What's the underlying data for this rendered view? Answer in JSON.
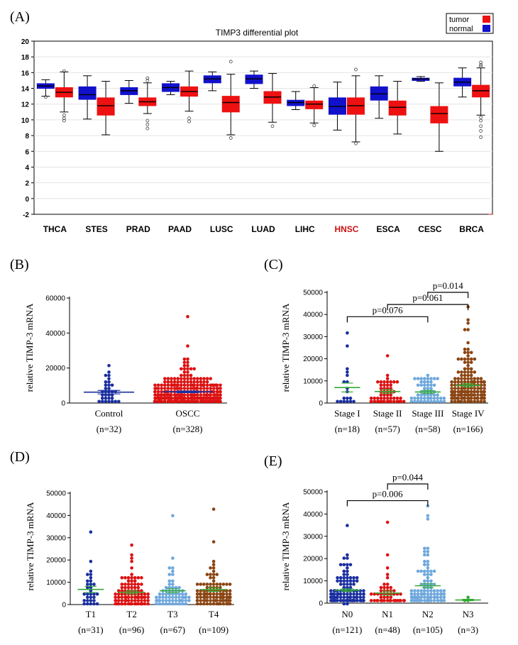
{
  "figure_panels": {
    "A": "(A)",
    "B": "(B)",
    "C": "(C)",
    "D": "(D)",
    "E": "(E)"
  },
  "colors": {
    "tumor": "#ee1111",
    "normal": "#1111cc",
    "hnsc_label": "#cc1111",
    "dot_blue": "#1a2ea0",
    "dot_red": "#dd1111",
    "dot_lightblue": "#6fa8dc",
    "dot_brown": "#8b4513",
    "mean_green": "#33aa33"
  },
  "chart_data": [
    {
      "id": "A",
      "type": "box",
      "title": "TIMP3 differential plot",
      "legend": [
        "tumor",
        "normal"
      ],
      "ylim": [
        -2,
        20
      ],
      "yticks": [
        -2,
        0,
        2,
        4,
        6,
        8,
        10,
        12,
        14,
        16,
        18,
        20
      ],
      "yticklabels": [
        "-2",
        "0",
        "2",
        "4",
        "6",
        "8",
        "10",
        "12",
        "14",
        "16",
        "18",
        "20"
      ],
      "categories": [
        "THCA",
        "STES",
        "PRAD",
        "PAAD",
        "LUSC",
        "LUAD",
        "LIHC",
        "HNSC",
        "ESCA",
        "CESC",
        "BRCA"
      ],
      "highlight": "HNSC",
      "series": [
        {
          "name": "normal",
          "boxes": [
            {
              "min": 13.0,
              "q1": 14.0,
              "median": 14.3,
              "q3": 14.6,
              "max": 15.1,
              "out": [
                12.9
              ]
            },
            {
              "min": 10.1,
              "q1": 12.6,
              "median": 13.2,
              "q3": 14.2,
              "max": 15.6,
              "out": []
            },
            {
              "min": 12.1,
              "q1": 13.2,
              "median": 13.7,
              "q3": 14.1,
              "max": 15.0,
              "out": []
            },
            {
              "min": 13.2,
              "q1": 13.6,
              "median": 14.1,
              "q3": 14.6,
              "max": 14.9,
              "out": []
            },
            {
              "min": 13.7,
              "q1": 14.7,
              "median": 15.2,
              "q3": 15.6,
              "max": 16.1,
              "out": []
            },
            {
              "min": 14.0,
              "q1": 14.6,
              "median": 15.2,
              "q3": 15.7,
              "max": 16.2,
              "out": []
            },
            {
              "min": 11.3,
              "q1": 11.8,
              "median": 12.2,
              "q3": 12.5,
              "max": 13.6,
              "out": []
            },
            {
              "min": 8.7,
              "q1": 10.7,
              "median": 11.7,
              "q3": 12.8,
              "max": 14.8,
              "out": []
            },
            {
              "min": 10.2,
              "q1": 12.5,
              "median": 13.3,
              "q3": 14.2,
              "max": 15.6,
              "out": []
            },
            {
              "min": 14.9,
              "q1": 15.0,
              "median": 15.2,
              "q3": 15.3,
              "max": 15.5,
              "out": []
            },
            {
              "min": 12.9,
              "q1": 14.3,
              "median": 14.8,
              "q3": 15.3,
              "max": 16.6,
              "out": []
            }
          ]
        },
        {
          "name": "tumor",
          "boxes": [
            {
              "min": 11.0,
              "q1": 12.9,
              "median": 13.5,
              "q3": 14.1,
              "max": 16.1,
              "out": [
                10.6,
                10.2,
                9.9,
                16.2
              ]
            },
            {
              "min": 8.1,
              "q1": 10.6,
              "median": 11.8,
              "q3": 12.8,
              "max": 14.9,
              "out": []
            },
            {
              "min": 10.8,
              "q1": 11.8,
              "median": 12.3,
              "q3": 12.8,
              "max": 14.7,
              "out": [
                15.3,
                15.0,
                9.9,
                9.4,
                8.9
              ]
            },
            {
              "min": 11.1,
              "q1": 13.0,
              "median": 13.6,
              "q3": 14.2,
              "max": 16.2,
              "out": [
                10.2,
                9.8
              ]
            },
            {
              "min": 8.1,
              "q1": 11.0,
              "median": 12.2,
              "q3": 13.0,
              "max": 15.8,
              "out": [
                17.4,
                7.7
              ]
            },
            {
              "min": 9.7,
              "q1": 12.1,
              "median": 12.9,
              "q3": 13.6,
              "max": 15.9,
              "out": [
                9.2
              ]
            },
            {
              "min": 9.6,
              "q1": 11.4,
              "median": 12.0,
              "q3": 12.4,
              "max": 14.1,
              "out": [
                9.3,
                14.3
              ]
            },
            {
              "min": 7.2,
              "q1": 10.7,
              "median": 11.8,
              "q3": 12.8,
              "max": 15.6,
              "out": [
                16.4,
                7.0
              ]
            },
            {
              "min": 8.2,
              "q1": 10.6,
              "median": 11.6,
              "q3": 12.4,
              "max": 14.9,
              "out": []
            },
            {
              "min": 6.0,
              "q1": 9.6,
              "median": 10.8,
              "q3": 11.7,
              "max": 14.7,
              "out": []
            },
            {
              "min": 10.6,
              "q1": 12.9,
              "median": 13.7,
              "q3": 14.4,
              "max": 16.6,
              "out": [
                17.3,
                17.0,
                16.8,
                10.3,
                9.9,
                9.2,
                8.6,
                7.8
              ]
            }
          ]
        }
      ]
    },
    {
      "id": "B",
      "type": "scatter",
      "ylabel": "relative TIMP-3 mRNA",
      "ylim": [
        0,
        60000
      ],
      "yticks": [
        0,
        20000,
        40000,
        60000
      ],
      "yticklabels": [
        "0",
        "20000",
        "40000",
        "60000"
      ],
      "categories": [
        "Control",
        "OSCC"
      ],
      "counts": [
        "(n=32)",
        "(n=328)"
      ],
      "groups": [
        {
          "name": "Control",
          "n": 32,
          "mean": 6200,
          "sem": 1000,
          "max": 21000,
          "color": "dot_blue"
        },
        {
          "name": "OSCC",
          "n": 328,
          "mean": 6400,
          "sem": 500,
          "max": 49000,
          "color": "dot_red"
        }
      ]
    },
    {
      "id": "C",
      "type": "scatter",
      "ylabel": "relative TIMP-3 mRNA",
      "ylim": [
        0,
        50000
      ],
      "yticks": [
        0,
        10000,
        20000,
        30000,
        40000,
        50000
      ],
      "yticklabels": [
        "0",
        "10000",
        "20000",
        "30000",
        "40000",
        "50000"
      ],
      "categories": [
        "Stage I",
        "Stage II",
        "Stage III",
        "Stage IV"
      ],
      "counts": [
        "(n=18)",
        "(n=57)",
        "(n=58)",
        "(n=166)"
      ],
      "groups": [
        {
          "name": "Stage I",
          "n": 18,
          "mean": 7000,
          "sem": 2000,
          "max": 32000,
          "color": "dot_blue"
        },
        {
          "name": "Stage II",
          "n": 57,
          "mean": 5200,
          "sem": 800,
          "max": 22000,
          "color": "dot_red"
        },
        {
          "name": "Stage III",
          "n": 58,
          "mean": 5000,
          "sem": 700,
          "max": 13000,
          "color": "dot_lightblue"
        },
        {
          "name": "Stage IV",
          "n": 166,
          "mean": 8000,
          "sem": 700,
          "max": 44000,
          "color": "dot_brown"
        }
      ],
      "comparisons": [
        {
          "from": 0,
          "to": 2,
          "label": "p=0.076",
          "y": 39000
        },
        {
          "from": 1,
          "to": 3,
          "label": "p=0.061",
          "y": 44500
        },
        {
          "from": 2,
          "to": 3,
          "label": "p=0.014",
          "y": 50000
        }
      ]
    },
    {
      "id": "D",
      "type": "scatter",
      "ylabel": "relative TIMP-3 mRNA",
      "ylim": [
        0,
        50000
      ],
      "yticks": [
        0,
        10000,
        20000,
        30000,
        40000,
        50000
      ],
      "yticklabels": [
        "0",
        "10000",
        "20000",
        "30000",
        "40000",
        "50000"
      ],
      "categories": [
        "T1",
        "T2",
        "T3",
        "T4"
      ],
      "counts": [
        "(n=31)",
        "(n=96)",
        "(n=67)",
        "(n=109)"
      ],
      "groups": [
        {
          "name": "T1",
          "n": 31,
          "mean": 6800,
          "sem": 1400,
          "max": 32000,
          "color": "dot_blue"
        },
        {
          "name": "T2",
          "n": 96,
          "mean": 5500,
          "sem": 700,
          "max": 27000,
          "color": "dot_red"
        },
        {
          "name": "T3",
          "n": 67,
          "mean": 6200,
          "sem": 900,
          "max": 40000,
          "color": "dot_lightblue"
        },
        {
          "name": "T4",
          "n": 109,
          "mean": 6700,
          "sem": 800,
          "max": 43500,
          "color": "dot_brown"
        }
      ]
    },
    {
      "id": "E",
      "type": "scatter",
      "ylabel": "relative TIMP-3 mRNA",
      "ylim": [
        0,
        50000
      ],
      "yticks": [
        0,
        10000,
        20000,
        30000,
        40000,
        50000
      ],
      "yticklabels": [
        "0",
        "10000",
        "20000",
        "30000",
        "40000",
        "50000"
      ],
      "categories": [
        "N0",
        "N1",
        "N2",
        "N3"
      ],
      "counts": [
        "(n=121)",
        "(n=48)",
        "(n=105)",
        "(n=3)"
      ],
      "groups": [
        {
          "name": "N0",
          "n": 121,
          "mean": 5800,
          "sem": 600,
          "max": 35000,
          "color": "dot_blue"
        },
        {
          "name": "N1",
          "n": 48,
          "mean": 4500,
          "sem": 900,
          "max": 36500,
          "color": "dot_red"
        },
        {
          "name": "N2",
          "n": 105,
          "mean": 7800,
          "sem": 900,
          "max": 44000,
          "color": "dot_lightblue"
        },
        {
          "name": "N3",
          "n": 3,
          "mean": 1400,
          "sem": 300,
          "max": 2500,
          "color": "mean_green"
        }
      ],
      "comparisons": [
        {
          "from": 0,
          "to": 2,
          "label": "p=0.006",
          "y": 46000
        },
        {
          "from": 1,
          "to": 2,
          "label": "p=0.044",
          "y": 53500
        }
      ]
    }
  ]
}
